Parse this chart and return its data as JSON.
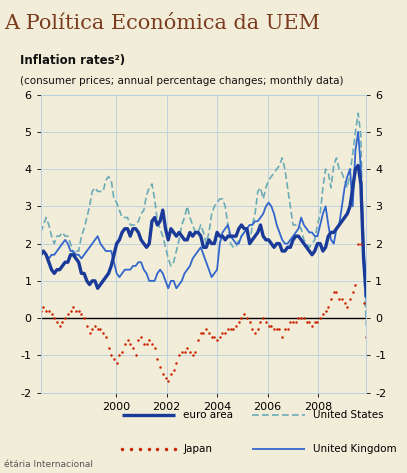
{
  "title_main": "A Política Económica da UEM",
  "chart_title_bold": "Inflation rates²)",
  "chart_subtitle": "(consumer prices; annual percentage changes; monthly data)",
  "footer_left": "étária Internacional",
  "ylim": [
    -2,
    6
  ],
  "yticks": [
    -2,
    -1,
    0,
    1,
    2,
    3,
    4,
    5,
    6
  ],
  "bg_color": "#f2edd8",
  "title_bg": "#ffffff",
  "plot_bg": "#f2edd8",
  "grid_color": "#b8cfe0",
  "xstart": 1997.0,
  "xend": 2009.92,
  "xtick_years": [
    2000,
    2002,
    2004,
    2006,
    2008
  ],
  "euro_area_color": "#1a3a99",
  "us_color": "#6aabb8",
  "uk_color": "#3366cc",
  "japan_color": "#cc2200",
  "euro_area": [
    1.7,
    1.8,
    1.7,
    1.5,
    1.3,
    1.2,
    1.3,
    1.3,
    1.4,
    1.5,
    1.5,
    1.7,
    1.7,
    1.6,
    1.5,
    1.2,
    1.2,
    1.0,
    0.9,
    1.0,
    1.0,
    0.8,
    0.9,
    1.0,
    1.1,
    1.2,
    1.4,
    1.7,
    2.0,
    2.1,
    2.3,
    2.4,
    2.4,
    2.2,
    2.4,
    2.4,
    2.3,
    2.1,
    2.0,
    1.9,
    2.0,
    2.6,
    2.7,
    2.5,
    2.6,
    2.9,
    2.4,
    2.1,
    2.4,
    2.3,
    2.2,
    2.3,
    2.2,
    2.1,
    2.1,
    2.3,
    2.2,
    2.3,
    2.3,
    2.2,
    1.9,
    1.9,
    2.1,
    2.0,
    2.0,
    2.3,
    2.2,
    2.2,
    2.1,
    2.2,
    2.2,
    2.2,
    2.2,
    2.4,
    2.5,
    2.4,
    2.4,
    2.0,
    2.1,
    2.2,
    2.3,
    2.5,
    2.2,
    2.1,
    2.1,
    2.0,
    1.9,
    2.0,
    2.0,
    1.8,
    1.8,
    1.9,
    1.9,
    2.1,
    2.2,
    2.2,
    2.1,
    2.0,
    1.9,
    1.8,
    1.7,
    1.8,
    2.0,
    2.0,
    1.8,
    1.9,
    2.2,
    2.3,
    2.3,
    2.4,
    2.5,
    2.6,
    2.7,
    2.8,
    3.0,
    3.5,
    4.0,
    4.1,
    3.6,
    1.6,
    0.6
  ],
  "japan": [
    0.2,
    0.3,
    0.2,
    0.2,
    0.1,
    0.0,
    -0.1,
    -0.2,
    -0.1,
    0.0,
    0.1,
    0.2,
    0.3,
    0.2,
    0.2,
    0.1,
    0.0,
    -0.2,
    -0.4,
    -0.3,
    -0.2,
    -0.3,
    -0.3,
    -0.4,
    -0.5,
    -0.8,
    -1.0,
    -1.1,
    -1.2,
    -1.0,
    -0.9,
    -0.7,
    -0.6,
    -0.7,
    -0.8,
    -1.0,
    -0.6,
    -0.5,
    -0.7,
    -0.7,
    -0.6,
    -0.7,
    -0.8,
    -1.1,
    -1.3,
    -1.5,
    -1.6,
    -1.7,
    -1.5,
    -1.4,
    -1.2,
    -1.0,
    -0.9,
    -0.9,
    -0.8,
    -0.9,
    -1.0,
    -0.9,
    -0.6,
    -0.4,
    -0.4,
    -0.3,
    -0.4,
    -0.5,
    -0.5,
    -0.6,
    -0.5,
    -0.4,
    -0.4,
    -0.3,
    -0.3,
    -0.3,
    -0.2,
    -0.1,
    0.0,
    0.1,
    0.0,
    -0.1,
    -0.3,
    -0.4,
    -0.3,
    -0.1,
    0.0,
    -0.1,
    -0.2,
    -0.2,
    -0.3,
    -0.3,
    -0.3,
    -0.5,
    -0.3,
    -0.3,
    -0.1,
    -0.1,
    -0.1,
    0.0,
    0.0,
    0.0,
    -0.1,
    -0.1,
    -0.2,
    -0.1,
    -0.1,
    0.0,
    0.1,
    0.2,
    0.3,
    0.5,
    0.7,
    0.7,
    0.5,
    0.5,
    0.4,
    0.3,
    0.5,
    0.7,
    0.9,
    2.0,
    2.0,
    0.4,
    -0.5
  ],
  "us": [
    2.3,
    2.5,
    2.7,
    2.5,
    2.2,
    2.0,
    2.2,
    2.2,
    2.3,
    2.2,
    2.2,
    2.0,
    1.7,
    1.8,
    1.8,
    2.2,
    2.4,
    2.7,
    3.0,
    3.4,
    3.5,
    3.4,
    3.4,
    3.4,
    3.7,
    3.8,
    3.7,
    3.2,
    3.1,
    2.9,
    2.7,
    2.7,
    2.7,
    2.5,
    2.5,
    2.5,
    2.6,
    2.8,
    2.9,
    3.3,
    3.5,
    3.6,
    3.2,
    2.6,
    2.4,
    2.2,
    1.9,
    1.6,
    1.4,
    1.5,
    1.8,
    2.1,
    2.5,
    2.7,
    3.0,
    2.7,
    2.5,
    2.3,
    2.3,
    2.5,
    2.3,
    2.0,
    2.3,
    2.8,
    3.0,
    3.1,
    3.2,
    3.2,
    3.0,
    2.5,
    2.0,
    1.9,
    1.9,
    2.1,
    2.2,
    2.3,
    2.3,
    2.0,
    2.5,
    2.8,
    3.4,
    3.5,
    3.2,
    3.5,
    3.7,
    3.8,
    3.9,
    4.0,
    4.1,
    4.3,
    4.0,
    3.5,
    3.0,
    2.5,
    2.5,
    2.5,
    2.4,
    2.1,
    2.0,
    1.9,
    2.0,
    2.1,
    2.5,
    2.8,
    3.5,
    4.0,
    3.9,
    3.5,
    4.1,
    4.3,
    4.0,
    3.9,
    3.7,
    3.5,
    3.9,
    4.4,
    5.0,
    5.5,
    4.9,
    1.4,
    -0.2
  ],
  "uk": [
    1.7,
    1.8,
    1.7,
    1.6,
    1.7,
    1.7,
    1.8,
    1.9,
    2.0,
    2.1,
    2.0,
    1.8,
    1.8,
    1.7,
    1.7,
    1.6,
    1.7,
    1.8,
    1.9,
    2.0,
    2.1,
    2.2,
    2.0,
    1.9,
    1.8,
    1.8,
    1.8,
    1.5,
    1.2,
    1.1,
    1.2,
    1.3,
    1.3,
    1.3,
    1.4,
    1.4,
    1.5,
    1.5,
    1.3,
    1.2,
    1.0,
    1.0,
    1.0,
    1.2,
    1.3,
    1.2,
    1.0,
    0.8,
    1.0,
    1.0,
    0.8,
    0.9,
    1.0,
    1.2,
    1.3,
    1.4,
    1.6,
    1.7,
    1.8,
    1.9,
    1.7,
    1.5,
    1.3,
    1.1,
    1.2,
    1.3,
    2.0,
    2.3,
    2.4,
    2.5,
    2.2,
    2.1,
    2.0,
    2.0,
    2.2,
    2.3,
    2.4,
    2.5,
    2.5,
    2.6,
    2.6,
    2.7,
    2.8,
    3.0,
    3.1,
    3.0,
    2.8,
    2.5,
    2.3,
    2.1,
    2.0,
    2.0,
    2.1,
    2.2,
    2.3,
    2.4,
    2.7,
    2.5,
    2.4,
    2.3,
    2.3,
    2.2,
    2.2,
    2.5,
    2.8,
    3.0,
    2.5,
    2.1,
    2.0,
    2.4,
    2.5,
    3.0,
    3.5,
    3.8,
    4.0,
    3.0,
    4.5,
    5.0,
    4.0,
    2.0,
    0.5
  ]
}
